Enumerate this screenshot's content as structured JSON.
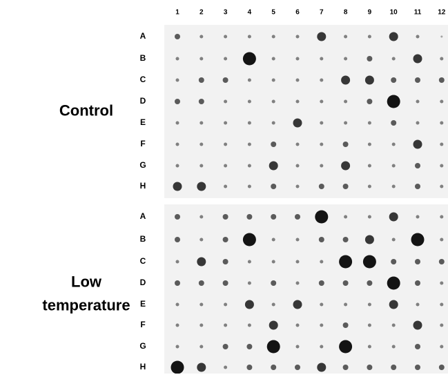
{
  "columns": [
    "1",
    "2",
    "3",
    "4",
    "5",
    "6",
    "7",
    "8",
    "9",
    "10",
    "11",
    "12"
  ],
  "panels": [
    {
      "label": [
        "Control"
      ],
      "rows": [
        "A",
        "B",
        "C",
        "D",
        "E",
        "F",
        "G",
        "H"
      ],
      "spots": [
        [
          2,
          1,
          1,
          1,
          1,
          1,
          3,
          1,
          1,
          3,
          1,
          0
        ],
        [
          1,
          1,
          1,
          4,
          1,
          1,
          1,
          1,
          2,
          1,
          3,
          1
        ],
        [
          1,
          2,
          2,
          1,
          1,
          1,
          1,
          3,
          3,
          2,
          2,
          2
        ],
        [
          2,
          2,
          1,
          1,
          1,
          1,
          1,
          1,
          2,
          4,
          1,
          1
        ],
        [
          1,
          1,
          1,
          1,
          1,
          3,
          1,
          1,
          1,
          2,
          1,
          1
        ],
        [
          1,
          1,
          1,
          1,
          2,
          1,
          1,
          2,
          1,
          1,
          3,
          1
        ],
        [
          1,
          1,
          1,
          1,
          3,
          1,
          1,
          3,
          1,
          1,
          2,
          1
        ],
        [
          3,
          3,
          1,
          1,
          2,
          1,
          2,
          2,
          1,
          1,
          2,
          1
        ]
      ]
    },
    {
      "label": [
        "Low",
        "temperature"
      ],
      "rows": [
        "A",
        "B",
        "C",
        "D",
        "E",
        "F",
        "G",
        "H"
      ],
      "spots": [
        [
          2,
          1,
          2,
          2,
          2,
          2,
          4,
          1,
          1,
          3,
          1,
          1
        ],
        [
          2,
          1,
          2,
          4,
          1,
          1,
          2,
          2,
          3,
          1,
          4,
          1
        ],
        [
          1,
          3,
          2,
          1,
          1,
          1,
          1,
          4,
          4,
          2,
          2,
          2
        ],
        [
          2,
          2,
          2,
          1,
          2,
          1,
          2,
          2,
          2,
          4,
          2,
          1
        ],
        [
          1,
          1,
          1,
          3,
          1,
          3,
          1,
          1,
          1,
          3,
          1,
          1
        ],
        [
          1,
          1,
          1,
          1,
          3,
          1,
          1,
          2,
          1,
          1,
          3,
          1
        ],
        [
          1,
          1,
          2,
          2,
          4,
          1,
          1,
          4,
          1,
          1,
          2,
          1
        ],
        [
          4,
          3,
          1,
          2,
          2,
          2,
          3,
          2,
          2,
          2,
          2,
          2
        ]
      ]
    }
  ]
}
